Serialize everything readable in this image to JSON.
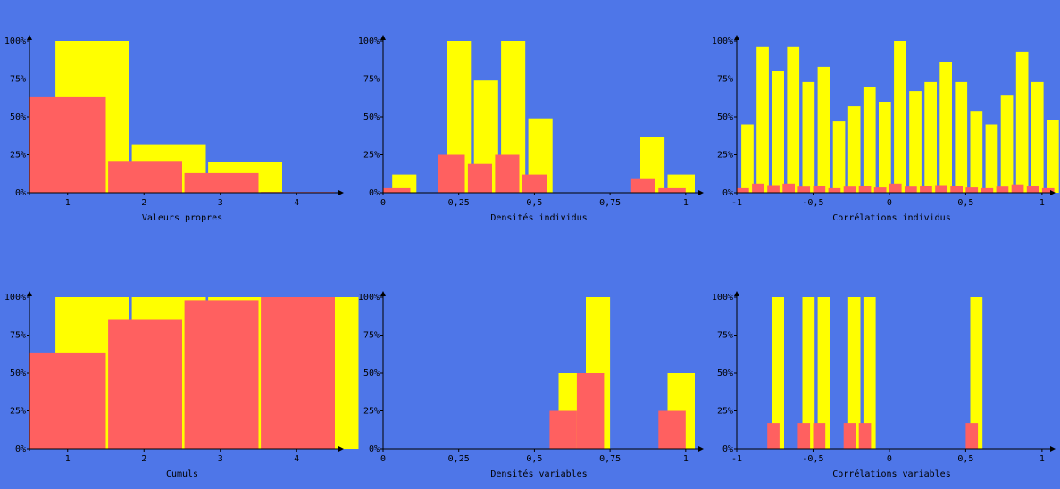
{
  "colors": {
    "background": "#4e76e8",
    "yellow": "#ffff00",
    "red": "#ff6060",
    "axis": "#000000"
  },
  "chart_data": [
    {
      "type": "bar",
      "xlabel": "Valeurs propres",
      "xlim": [
        0.5,
        4.8
      ],
      "ylim": [
        0,
        1
      ],
      "xticks": [
        1,
        2,
        3,
        4
      ],
      "xtick_labels": [
        "1",
        "2",
        "3",
        "4"
      ],
      "yticks": [
        0,
        0.25,
        0.5,
        0.75,
        1
      ],
      "ytick_labels": [
        "0%",
        "25%",
        "50%",
        "75%",
        "100%"
      ],
      "series": [
        {
          "color": "yellow",
          "bars": [
            [
              0.84,
              1.81,
              1.0
            ],
            [
              1.84,
              2.81,
              0.32
            ],
            [
              2.84,
              3.81,
              0.2
            ]
          ]
        },
        {
          "color": "red",
          "bars": [
            [
              0.5,
              1.5,
              0.63
            ],
            [
              1.53,
              2.5,
              0.21
            ],
            [
              2.53,
              3.5,
              0.13
            ],
            [
              3.53,
              4.5,
              0.004
            ]
          ]
        }
      ]
    },
    {
      "type": "bar",
      "xlabel": "Densités individus",
      "xlim": [
        0,
        1.03
      ],
      "ylim": [
        0,
        1
      ],
      "xticks": [
        0,
        0.25,
        0.5,
        0.75,
        1
      ],
      "xtick_labels": [
        "0",
        "0,25",
        "0,5",
        "0,75",
        "1"
      ],
      "yticks": [
        0,
        0.25,
        0.5,
        0.75,
        1
      ],
      "ytick_labels": [
        "0%",
        "25%",
        "50%",
        "75%",
        "100%"
      ],
      "series": [
        {
          "color": "yellow",
          "bars": [
            [
              0.03,
              0.11,
              0.12
            ],
            [
              0.21,
              0.29,
              1.0
            ],
            [
              0.3,
              0.38,
              0.74
            ],
            [
              0.39,
              0.47,
              1.0
            ],
            [
              0.48,
              0.56,
              0.49
            ],
            [
              0.85,
              0.93,
              0.37
            ],
            [
              0.94,
              1.03,
              0.12
            ]
          ]
        },
        {
          "color": "red",
          "bars": [
            [
              0.0,
              0.09,
              0.03
            ],
            [
              0.18,
              0.27,
              0.25
            ],
            [
              0.28,
              0.36,
              0.19
            ],
            [
              0.37,
              0.45,
              0.25
            ],
            [
              0.46,
              0.54,
              0.12
            ],
            [
              0.82,
              0.9,
              0.09
            ],
            [
              0.91,
              1.0,
              0.03
            ]
          ]
        }
      ]
    },
    {
      "type": "bar",
      "xlabel": "Corrélations individus",
      "xlim": [
        -1,
        1.03
      ],
      "ylim": [
        0,
        1
      ],
      "xticks": [
        -1,
        -0.5,
        0,
        0.5,
        1
      ],
      "xtick_labels": [
        "-1",
        "-0,5",
        "0",
        "0,5",
        "1"
      ],
      "yticks": [
        0,
        0.25,
        0.5,
        0.75,
        1
      ],
      "ytick_labels": [
        "0%",
        "25%",
        "50%",
        "75%",
        "100%"
      ],
      "series": [
        {
          "color": "yellow",
          "bars": [
            [
              -0.97,
              -0.89,
              0.45
            ],
            [
              -0.87,
              -0.79,
              0.96
            ],
            [
              -0.77,
              -0.69,
              0.8
            ],
            [
              -0.67,
              -0.59,
              0.96
            ],
            [
              -0.57,
              -0.49,
              0.73
            ],
            [
              -0.47,
              -0.39,
              0.83
            ],
            [
              -0.37,
              -0.29,
              0.47
            ],
            [
              -0.27,
              -0.19,
              0.57
            ],
            [
              -0.17,
              -0.09,
              0.7
            ],
            [
              -0.07,
              0.01,
              0.6
            ],
            [
              0.03,
              0.11,
              1.0
            ],
            [
              0.13,
              0.21,
              0.67
            ],
            [
              0.23,
              0.31,
              0.73
            ],
            [
              0.33,
              0.41,
              0.86
            ],
            [
              0.43,
              0.51,
              0.73
            ],
            [
              0.53,
              0.61,
              0.54
            ],
            [
              0.63,
              0.71,
              0.45
            ],
            [
              0.73,
              0.81,
              0.64
            ],
            [
              0.83,
              0.91,
              0.93
            ],
            [
              0.93,
              1.01,
              0.73
            ],
            [
              1.03,
              1.11,
              0.48
            ]
          ]
        },
        {
          "color": "red",
          "bars": [
            [
              -1.0,
              -0.92,
              0.03
            ],
            [
              -0.9,
              -0.82,
              0.06
            ],
            [
              -0.8,
              -0.72,
              0.05
            ],
            [
              -0.7,
              -0.62,
              0.06
            ],
            [
              -0.6,
              -0.52,
              0.04
            ],
            [
              -0.5,
              -0.42,
              0.045
            ],
            [
              -0.4,
              -0.32,
              0.03
            ],
            [
              -0.3,
              -0.22,
              0.04
            ],
            [
              -0.2,
              -0.12,
              0.045
            ],
            [
              -0.1,
              -0.02,
              0.035
            ],
            [
              0.0,
              0.08,
              0.06
            ],
            [
              0.1,
              0.18,
              0.04
            ],
            [
              0.2,
              0.28,
              0.045
            ],
            [
              0.3,
              0.38,
              0.05
            ],
            [
              0.4,
              0.48,
              0.045
            ],
            [
              0.5,
              0.58,
              0.035
            ],
            [
              0.6,
              0.68,
              0.03
            ],
            [
              0.7,
              0.78,
              0.04
            ],
            [
              0.8,
              0.88,
              0.055
            ],
            [
              0.9,
              0.98,
              0.045
            ],
            [
              1.0,
              1.08,
              0.03
            ]
          ]
        }
      ]
    },
    {
      "type": "bar",
      "xlabel": "Cumuls",
      "xlim": [
        0.5,
        4.8
      ],
      "ylim": [
        0,
        1
      ],
      "xticks": [
        1,
        2,
        3,
        4
      ],
      "xtick_labels": [
        "1",
        "2",
        "3",
        "4"
      ],
      "yticks": [
        0,
        0.25,
        0.5,
        0.75,
        1
      ],
      "ytick_labels": [
        "0%",
        "25%",
        "50%",
        "75%",
        "100%"
      ],
      "series": [
        {
          "color": "yellow",
          "bars": [
            [
              0.84,
              1.81,
              1.0
            ],
            [
              1.84,
              2.81,
              1.0
            ],
            [
              2.84,
              3.81,
              1.0
            ],
            [
              3.84,
              4.81,
              1.0
            ]
          ]
        },
        {
          "color": "red",
          "bars": [
            [
              0.5,
              1.5,
              0.63
            ],
            [
              1.53,
              2.5,
              0.85
            ],
            [
              2.53,
              3.5,
              0.98
            ],
            [
              3.53,
              4.5,
              1.0
            ]
          ]
        }
      ]
    },
    {
      "type": "bar",
      "xlabel": "Densités variables",
      "xlim": [
        0,
        1.03
      ],
      "ylim": [
        0,
        1
      ],
      "xticks": [
        0,
        0.25,
        0.5,
        0.75,
        1
      ],
      "xtick_labels": [
        "0",
        "0,25",
        "0,5",
        "0,75",
        "1"
      ],
      "yticks": [
        0,
        0.25,
        0.5,
        0.75,
        1
      ],
      "ytick_labels": [
        "0%",
        "25%",
        "50%",
        "75%",
        "100%"
      ],
      "series": [
        {
          "color": "yellow",
          "bars": [
            [
              0.58,
              0.67,
              0.5
            ],
            [
              0.67,
              0.75,
              1.0
            ],
            [
              0.94,
              1.03,
              0.5
            ]
          ]
        },
        {
          "color": "red",
          "bars": [
            [
              0.55,
              0.64,
              0.25
            ],
            [
              0.64,
              0.73,
              0.5
            ],
            [
              0.91,
              1.0,
              0.25
            ]
          ]
        }
      ]
    },
    {
      "type": "bar",
      "xlabel": "Corrélations variables",
      "xlim": [
        -1,
        1.03
      ],
      "ylim": [
        0,
        1
      ],
      "xticks": [
        -1,
        -0.5,
        0,
        0.5,
        1
      ],
      "xtick_labels": [
        "-1",
        "-0,5",
        "0",
        "0,5",
        "1"
      ],
      "yticks": [
        0,
        0.25,
        0.5,
        0.75,
        1
      ],
      "ytick_labels": [
        "0%",
        "25%",
        "50%",
        "75%",
        "100%"
      ],
      "series": [
        {
          "color": "yellow",
          "bars": [
            [
              -0.77,
              -0.69,
              1.0
            ],
            [
              -0.57,
              -0.49,
              1.0
            ],
            [
              -0.47,
              -0.39,
              1.0
            ],
            [
              -0.27,
              -0.19,
              1.0
            ],
            [
              -0.17,
              -0.09,
              1.0
            ],
            [
              0.53,
              0.61,
              1.0
            ]
          ]
        },
        {
          "color": "red",
          "bars": [
            [
              -0.8,
              -0.72,
              0.17
            ],
            [
              -0.6,
              -0.52,
              0.17
            ],
            [
              -0.5,
              -0.42,
              0.17
            ],
            [
              -0.3,
              -0.22,
              0.17
            ],
            [
              -0.2,
              -0.12,
              0.17
            ],
            [
              0.5,
              0.58,
              0.17
            ]
          ]
        }
      ]
    }
  ]
}
